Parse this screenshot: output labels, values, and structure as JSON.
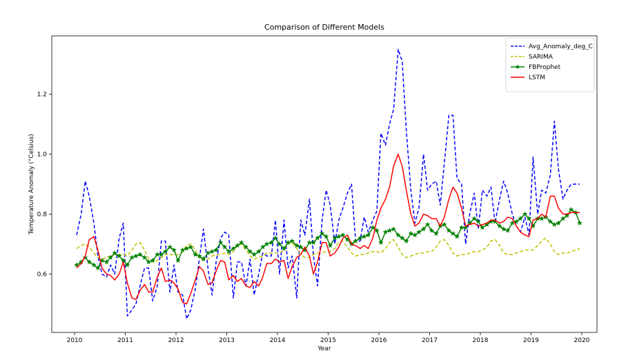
{
  "chart_data": {
    "type": "line",
    "title": "Comparison of Different Models",
    "xlabel": "Year",
    "ylabel": "Temperature Anomaly (°Celsius)",
    "xlim": [
      2009.55,
      2020.3
    ],
    "ylim": [
      0.405,
      1.395
    ],
    "x_ticks": [
      2010,
      2011,
      2012,
      2013,
      2014,
      2015,
      2016,
      2017,
      2018,
      2019,
      2020
    ],
    "x_tick_labels": [
      "2010",
      "2011",
      "2012",
      "2013",
      "2014",
      "2015",
      "2016",
      "2017",
      "2018",
      "2019",
      "2020"
    ],
    "y_ticks": [
      0.6,
      0.8,
      1.0,
      1.2
    ],
    "y_tick_labels": [
      "0.6",
      "0.8",
      "1.0",
      "1.2"
    ],
    "grid": false,
    "legend_position": "top-right",
    "series": [
      {
        "name": "Avg_Anomaly_deg_C",
        "color": "#0000ff",
        "style": "dashed",
        "marker": "none",
        "x": [
          2010.04,
          2010.13,
          2010.21,
          2010.29,
          2010.38,
          2010.46,
          2010.54,
          2010.63,
          2010.71,
          2010.79,
          2010.88,
          2010.96,
          2011.04,
          2011.13,
          2011.21,
          2011.29,
          2011.38,
          2011.46,
          2011.54,
          2011.63,
          2011.71,
          2011.79,
          2011.88,
          2011.96,
          2012.04,
          2012.13,
          2012.21,
          2012.29,
          2012.38,
          2012.46,
          2012.54,
          2012.63,
          2012.71,
          2012.79,
          2012.88,
          2012.96,
          2013.04,
          2013.13,
          2013.21,
          2013.29,
          2013.38,
          2013.46,
          2013.54,
          2013.63,
          2013.71,
          2013.79,
          2013.88,
          2013.96,
          2014.04,
          2014.13,
          2014.21,
          2014.29,
          2014.38,
          2014.46,
          2014.54,
          2014.63,
          2014.71,
          2014.79,
          2014.88,
          2014.96,
          2015.04,
          2015.13,
          2015.21,
          2015.29,
          2015.38,
          2015.46,
          2015.54,
          2015.63,
          2015.71,
          2015.79,
          2015.88,
          2015.96,
          2016.04,
          2016.13,
          2016.21,
          2016.29,
          2016.38,
          2016.46,
          2016.54,
          2016.63,
          2016.71,
          2016.79,
          2016.88,
          2016.96,
          2017.04,
          2017.13,
          2017.21,
          2017.29,
          2017.38,
          2017.46,
          2017.54,
          2017.63,
          2017.71,
          2017.79,
          2017.88,
          2017.96,
          2018.04,
          2018.13,
          2018.21,
          2018.29,
          2018.38,
          2018.46,
          2018.54,
          2018.63,
          2018.71,
          2018.79,
          2018.88,
          2018.96,
          2019.04,
          2019.13,
          2019.21,
          2019.29,
          2019.38,
          2019.46,
          2019.54,
          2019.63,
          2019.71,
          2019.79,
          2019.88,
          2019.96
        ],
        "y": [
          0.73,
          0.8,
          0.91,
          0.86,
          0.77,
          0.66,
          0.6,
          0.59,
          0.63,
          0.6,
          0.72,
          0.77,
          0.46,
          0.48,
          0.5,
          0.56,
          0.62,
          0.62,
          0.51,
          0.56,
          0.71,
          0.71,
          0.54,
          0.63,
          0.54,
          0.53,
          0.45,
          0.48,
          0.55,
          0.65,
          0.75,
          0.62,
          0.53,
          0.64,
          0.72,
          0.74,
          0.73,
          0.52,
          0.64,
          0.64,
          0.56,
          0.65,
          0.53,
          0.6,
          0.67,
          0.66,
          0.66,
          0.78,
          0.6,
          0.78,
          0.62,
          0.66,
          0.52,
          0.78,
          0.73,
          0.85,
          0.66,
          0.56,
          0.78,
          0.88,
          0.83,
          0.7,
          0.78,
          0.82,
          0.87,
          0.9,
          0.71,
          0.71,
          0.79,
          0.74,
          0.78,
          0.81,
          1.07,
          1.03,
          1.1,
          1.15,
          1.35,
          1.31,
          1.08,
          0.88,
          0.77,
          0.82,
          1.0,
          0.88,
          0.9,
          0.91,
          0.83,
          0.97,
          1.13,
          1.13,
          0.92,
          0.9,
          0.7,
          0.8,
          0.87,
          0.75,
          0.88,
          0.86,
          0.89,
          0.77,
          0.85,
          0.91,
          0.87,
          0.8,
          0.76,
          0.74,
          0.79,
          0.73,
          0.99,
          0.8,
          0.88,
          0.87,
          0.93,
          1.11,
          0.95,
          0.85,
          0.88,
          0.9,
          0.9,
          0.9
        ]
      },
      {
        "name": "SARIMA",
        "color": "#bfbf00",
        "style": "dashed",
        "marker": "none",
        "x": [
          2010.04,
          2010.13,
          2010.21,
          2010.29,
          2010.38,
          2010.46,
          2010.54,
          2010.63,
          2010.71,
          2010.79,
          2010.88,
          2010.96,
          2011.04,
          2011.13,
          2011.21,
          2011.29,
          2011.38,
          2011.46,
          2011.54,
          2011.63,
          2011.71,
          2011.79,
          2011.88,
          2011.96,
          2012.04,
          2012.13,
          2012.21,
          2012.29,
          2012.38,
          2012.46,
          2012.54,
          2012.63,
          2012.71,
          2012.79,
          2012.88,
          2012.96,
          2013.04,
          2013.13,
          2013.21,
          2013.29,
          2013.38,
          2013.46,
          2013.54,
          2013.63,
          2013.71,
          2013.79,
          2013.88,
          2013.96,
          2014.04,
          2014.13,
          2014.21,
          2014.29,
          2014.38,
          2014.46,
          2014.54,
          2014.63,
          2014.71,
          2014.79,
          2014.88,
          2014.96,
          2015.04,
          2015.13,
          2015.21,
          2015.29,
          2015.38,
          2015.46,
          2015.54,
          2015.63,
          2015.71,
          2015.79,
          2015.88,
          2015.96,
          2016.04,
          2016.13,
          2016.21,
          2016.29,
          2016.38,
          2016.46,
          2016.54,
          2016.63,
          2016.71,
          2016.79,
          2016.88,
          2016.96,
          2017.04,
          2017.13,
          2017.21,
          2017.29,
          2017.38,
          2017.46,
          2017.54,
          2017.63,
          2017.71,
          2017.79,
          2017.88,
          2017.96,
          2018.04,
          2018.13,
          2018.21,
          2018.29,
          2018.38,
          2018.46,
          2018.54,
          2018.63,
          2018.71,
          2018.79,
          2018.88,
          2018.96,
          2019.04,
          2019.13,
          2019.21,
          2019.29,
          2019.38,
          2019.46,
          2019.54,
          2019.63,
          2019.71,
          2019.79,
          2019.88,
          2019.96
        ],
        "y": [
          0.685,
          0.695,
          0.7,
          0.69,
          0.67,
          0.655,
          0.65,
          0.655,
          0.66,
          0.665,
          0.665,
          0.665,
          0.66,
          0.68,
          0.7,
          0.705,
          0.68,
          0.65,
          0.64,
          0.645,
          0.655,
          0.665,
          0.665,
          0.665,
          0.665,
          0.675,
          0.695,
          0.7,
          0.68,
          0.655,
          0.645,
          0.65,
          0.66,
          0.665,
          0.665,
          0.67,
          0.665,
          0.675,
          0.695,
          0.7,
          0.68,
          0.66,
          0.65,
          0.655,
          0.66,
          0.67,
          0.67,
          0.67,
          0.67,
          0.68,
          0.7,
          0.705,
          0.685,
          0.665,
          0.655,
          0.655,
          0.665,
          0.67,
          0.67,
          0.675,
          0.675,
          0.685,
          0.705,
          0.71,
          0.69,
          0.67,
          0.66,
          0.665,
          0.665,
          0.67,
          0.675,
          0.675,
          0.67,
          0.685,
          0.705,
          0.715,
          0.69,
          0.665,
          0.655,
          0.66,
          0.665,
          0.67,
          0.67,
          0.675,
          0.675,
          0.69,
          0.71,
          0.715,
          0.695,
          0.67,
          0.66,
          0.665,
          0.665,
          0.67,
          0.675,
          0.675,
          0.68,
          0.69,
          0.71,
          0.715,
          0.695,
          0.67,
          0.665,
          0.665,
          0.67,
          0.675,
          0.68,
          0.68,
          0.68,
          0.695,
          0.71,
          0.72,
          0.7,
          0.675,
          0.665,
          0.67,
          0.67,
          0.675,
          0.68,
          0.685
        ]
      },
      {
        "name": "FBProphet",
        "color": "#008000",
        "style": "solid",
        "marker": "star",
        "x": [
          2010.04,
          2010.13,
          2010.21,
          2010.29,
          2010.38,
          2010.46,
          2010.54,
          2010.63,
          2010.71,
          2010.79,
          2010.88,
          2010.96,
          2011.04,
          2011.13,
          2011.21,
          2011.29,
          2011.38,
          2011.46,
          2011.54,
          2011.63,
          2011.71,
          2011.79,
          2011.88,
          2011.96,
          2012.04,
          2012.13,
          2012.21,
          2012.29,
          2012.38,
          2012.46,
          2012.54,
          2012.63,
          2012.71,
          2012.79,
          2012.88,
          2012.96,
          2013.04,
          2013.13,
          2013.21,
          2013.29,
          2013.38,
          2013.46,
          2013.54,
          2013.63,
          2013.71,
          2013.79,
          2013.88,
          2013.96,
          2014.04,
          2014.13,
          2014.21,
          2014.29,
          2014.38,
          2014.46,
          2014.54,
          2014.63,
          2014.71,
          2014.79,
          2014.88,
          2014.96,
          2015.04,
          2015.13,
          2015.21,
          2015.29,
          2015.38,
          2015.46,
          2015.54,
          2015.63,
          2015.71,
          2015.79,
          2015.88,
          2015.96,
          2016.04,
          2016.13,
          2016.21,
          2016.29,
          2016.38,
          2016.46,
          2016.54,
          2016.63,
          2016.71,
          2016.79,
          2016.88,
          2016.96,
          2017.04,
          2017.13,
          2017.21,
          2017.29,
          2017.38,
          2017.46,
          2017.54,
          2017.63,
          2017.71,
          2017.79,
          2017.88,
          2017.96,
          2018.04,
          2018.13,
          2018.21,
          2018.29,
          2018.38,
          2018.46,
          2018.54,
          2018.63,
          2018.71,
          2018.79,
          2018.88,
          2018.96,
          2019.04,
          2019.13,
          2019.21,
          2019.29,
          2019.38,
          2019.46,
          2019.54,
          2019.63,
          2019.71,
          2019.79,
          2019.88,
          2019.96
        ],
        "y": [
          0.63,
          0.64,
          0.655,
          0.64,
          0.63,
          0.62,
          0.645,
          0.64,
          0.655,
          0.67,
          0.66,
          0.645,
          0.63,
          0.655,
          0.66,
          0.665,
          0.655,
          0.64,
          0.645,
          0.665,
          0.665,
          0.675,
          0.69,
          0.68,
          0.645,
          0.68,
          0.685,
          0.69,
          0.665,
          0.66,
          0.65,
          0.67,
          0.675,
          0.68,
          0.705,
          0.69,
          0.675,
          0.685,
          0.695,
          0.705,
          0.69,
          0.675,
          0.665,
          0.675,
          0.69,
          0.7,
          0.705,
          0.72,
          0.7,
          0.685,
          0.705,
          0.71,
          0.695,
          0.69,
          0.68,
          0.705,
          0.705,
          0.72,
          0.735,
          0.725,
          0.695,
          0.72,
          0.725,
          0.73,
          0.715,
          0.7,
          0.71,
          0.72,
          0.725,
          0.73,
          0.755,
          0.745,
          0.705,
          0.74,
          0.745,
          0.75,
          0.73,
          0.72,
          0.71,
          0.735,
          0.73,
          0.74,
          0.75,
          0.765,
          0.745,
          0.735,
          0.76,
          0.765,
          0.745,
          0.735,
          0.725,
          0.755,
          0.755,
          0.77,
          0.785,
          0.775,
          0.755,
          0.765,
          0.775,
          0.775,
          0.76,
          0.75,
          0.745,
          0.77,
          0.775,
          0.785,
          0.8,
          0.785,
          0.76,
          0.785,
          0.785,
          0.79,
          0.775,
          0.765,
          0.77,
          0.785,
          0.795,
          0.815,
          0.805,
          0.77
        ]
      },
      {
        "name": "LSTM",
        "color": "#ff0000",
        "style": "solid",
        "marker": "none",
        "x": [
          2010.04,
          2010.13,
          2010.21,
          2010.29,
          2010.38,
          2010.46,
          2010.54,
          2010.63,
          2010.71,
          2010.79,
          2010.88,
          2010.96,
          2011.04,
          2011.13,
          2011.21,
          2011.29,
          2011.38,
          2011.46,
          2011.54,
          2011.63,
          2011.71,
          2011.79,
          2011.88,
          2011.96,
          2012.04,
          2012.13,
          2012.21,
          2012.29,
          2012.38,
          2012.46,
          2012.54,
          2012.63,
          2012.71,
          2012.79,
          2012.88,
          2012.96,
          2013.04,
          2013.13,
          2013.21,
          2013.29,
          2013.38,
          2013.46,
          2013.54,
          2013.63,
          2013.71,
          2013.79,
          2013.88,
          2013.96,
          2014.04,
          2014.13,
          2014.21,
          2014.29,
          2014.38,
          2014.46,
          2014.54,
          2014.63,
          2014.71,
          2014.79,
          2014.88,
          2014.96,
          2015.04,
          2015.13,
          2015.21,
          2015.29,
          2015.38,
          2015.46,
          2015.54,
          2015.63,
          2015.71,
          2015.79,
          2015.88,
          2015.96,
          2016.04,
          2016.13,
          2016.21,
          2016.29,
          2016.38,
          2016.46,
          2016.54,
          2016.63,
          2016.71,
          2016.79,
          2016.88,
          2016.96,
          2017.04,
          2017.13,
          2017.21,
          2017.29,
          2017.38,
          2017.46,
          2017.54,
          2017.63,
          2017.71,
          2017.79,
          2017.88,
          2017.96,
          2018.04,
          2018.13,
          2018.21,
          2018.29,
          2018.38,
          2018.46,
          2018.54,
          2018.63,
          2018.71,
          2018.79,
          2018.88,
          2018.96,
          2019.04,
          2019.13,
          2019.21,
          2019.29,
          2019.38,
          2019.46,
          2019.54,
          2019.63,
          2019.71,
          2019.79,
          2019.88,
          2019.96
        ],
        "y": [
          0.62,
          0.635,
          0.66,
          0.715,
          0.725,
          0.68,
          0.62,
          0.6,
          0.595,
          0.58,
          0.6,
          0.64,
          0.57,
          0.52,
          0.515,
          0.545,
          0.565,
          0.54,
          0.54,
          0.59,
          0.62,
          0.575,
          0.58,
          0.57,
          0.55,
          0.505,
          0.5,
          0.535,
          0.58,
          0.625,
          0.61,
          0.565,
          0.57,
          0.61,
          0.645,
          0.64,
          0.58,
          0.595,
          0.575,
          0.585,
          0.56,
          0.555,
          0.575,
          0.56,
          0.59,
          0.635,
          0.635,
          0.65,
          0.64,
          0.645,
          0.585,
          0.625,
          0.655,
          0.665,
          0.69,
          0.66,
          0.6,
          0.64,
          0.705,
          0.705,
          0.66,
          0.67,
          0.69,
          0.72,
          0.73,
          0.7,
          0.695,
          0.685,
          0.695,
          0.685,
          0.72,
          0.78,
          0.82,
          0.85,
          0.89,
          0.96,
          1.0,
          0.96,
          0.88,
          0.8,
          0.76,
          0.77,
          0.8,
          0.795,
          0.785,
          0.785,
          0.76,
          0.79,
          0.85,
          0.89,
          0.87,
          0.82,
          0.76,
          0.765,
          0.77,
          0.76,
          0.765,
          0.77,
          0.78,
          0.78,
          0.77,
          0.775,
          0.79,
          0.785,
          0.76,
          0.74,
          0.73,
          0.725,
          0.78,
          0.785,
          0.8,
          0.79,
          0.86,
          0.86,
          0.82,
          0.8,
          0.8,
          0.805,
          0.805,
          0.805
        ]
      }
    ]
  }
}
